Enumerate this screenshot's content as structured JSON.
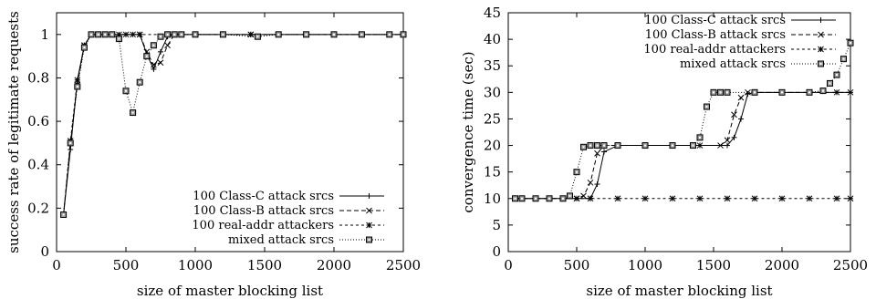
{
  "chart_data": [
    {
      "type": "line",
      "xlabel": "size of master blocking list",
      "ylabel": "success rate of legitimate requests",
      "xlim": [
        0,
        2500
      ],
      "ylim": [
        0,
        1.1
      ],
      "xticks": [
        "0",
        "500",
        "1000",
        "1500",
        "2000",
        "2500"
      ],
      "yticks": [
        "0",
        "0.2",
        "0.4",
        "0.6",
        "0.8",
        "1"
      ],
      "grid": false,
      "legend_position": "bottom-right",
      "series": [
        {
          "name": "100 Class-C attack srcs",
          "style": "solid",
          "marker": "plus",
          "x": [
            50,
            100,
            150,
            200,
            250,
            300,
            350,
            400,
            450,
            500,
            550,
            600,
            650,
            700,
            750,
            800,
            850,
            900,
            1000,
            1200,
            1400,
            1600,
            1800,
            2000,
            2200,
            2400,
            2500
          ],
          "y": [
            0.17,
            0.47,
            0.79,
            0.95,
            1.0,
            1.0,
            1.0,
            1.0,
            1.0,
            1.0,
            1.0,
            1.0,
            0.91,
            0.84,
            0.92,
            0.99,
            1.0,
            1.0,
            1.0,
            1.0,
            1.0,
            1.0,
            1.0,
            1.0,
            1.0,
            1.0,
            1.0
          ]
        },
        {
          "name": "100 Class-B attack srcs",
          "style": "dashed",
          "marker": "x",
          "x": [
            50,
            100,
            150,
            200,
            250,
            300,
            350,
            400,
            450,
            500,
            550,
            600,
            650,
            700,
            750,
            800,
            850,
            900,
            1000,
            1200,
            1400,
            1600,
            1800,
            2000,
            2200,
            2400,
            2500
          ],
          "y": [
            0.17,
            0.5,
            0.77,
            0.95,
            1.0,
            1.0,
            1.0,
            1.0,
            1.0,
            1.0,
            1.0,
            1.0,
            0.92,
            0.86,
            0.87,
            0.95,
            1.0,
            1.0,
            1.0,
            1.0,
            1.0,
            1.0,
            1.0,
            1.0,
            1.0,
            1.0,
            1.0
          ]
        },
        {
          "name": "100 real-addr attackers",
          "style": "dotted",
          "marker": "star",
          "x": [
            50,
            100,
            150,
            200,
            250,
            300,
            400,
            600,
            800,
            1000,
            1200,
            1400,
            1600,
            1800,
            2000,
            2200,
            2400,
            2500
          ],
          "y": [
            0.17,
            0.51,
            0.79,
            0.95,
            1.0,
            1.0,
            1.0,
            1.0,
            1.0,
            1.0,
            1.0,
            1.0,
            1.0,
            1.0,
            1.0,
            1.0,
            1.0,
            1.0
          ]
        },
        {
          "name": "mixed attack srcs",
          "style": "fine-dotted",
          "marker": "box",
          "x": [
            50,
            100,
            150,
            200,
            250,
            300,
            350,
            400,
            450,
            500,
            550,
            600,
            650,
            700,
            750,
            800,
            850,
            900,
            1000,
            1200,
            1450,
            1600,
            1800,
            2000,
            2200,
            2400,
            2500
          ],
          "y": [
            0.17,
            0.5,
            0.76,
            0.94,
            1.0,
            1.0,
            1.0,
            1.0,
            0.98,
            0.74,
            0.64,
            0.78,
            0.9,
            0.95,
            0.99,
            1.0,
            1.0,
            1.0,
            1.0,
            1.0,
            0.99,
            1.0,
            1.0,
            1.0,
            1.0,
            1.0,
            1.0
          ]
        }
      ]
    },
    {
      "type": "line",
      "xlabel": "size of master blocking list",
      "ylabel": "convergence time (sec)",
      "xlim": [
        0,
        2500
      ],
      "ylim": [
        0,
        45
      ],
      "xticks": [
        "0",
        "500",
        "1000",
        "1500",
        "2000",
        "2500"
      ],
      "yticks": [
        "0",
        "5",
        "10",
        "15",
        "20",
        "25",
        "30",
        "35",
        "40",
        "45"
      ],
      "grid": false,
      "legend_position": "top-right",
      "series": [
        {
          "name": "100 Class-C attack srcs",
          "style": "solid",
          "marker": "plus",
          "x": [
            50,
            100,
            200,
            300,
            400,
            500,
            600,
            650,
            700,
            800,
            1000,
            1200,
            1400,
            1600,
            1650,
            1700,
            1750,
            1800,
            2000,
            2200,
            2400,
            2500
          ],
          "y": [
            10,
            10,
            10,
            10,
            10,
            10,
            10,
            12.7,
            18.8,
            20,
            20,
            20,
            20,
            20,
            21.5,
            25,
            29.7,
            30,
            30,
            30,
            30,
            30
          ]
        },
        {
          "name": "100 Class-B attack srcs",
          "style": "dashed",
          "marker": "x",
          "x": [
            50,
            100,
            200,
            300,
            400,
            500,
            550,
            600,
            650,
            700,
            800,
            1000,
            1200,
            1400,
            1550,
            1600,
            1650,
            1700,
            1750,
            2000,
            2200,
            2400,
            2500
          ],
          "y": [
            10,
            10,
            10,
            10,
            10,
            10,
            10.5,
            13,
            18.5,
            20,
            20,
            20,
            20,
            20,
            20,
            21,
            25.8,
            29,
            30,
            30,
            30,
            30,
            30
          ]
        },
        {
          "name": "100 real-addr attackers",
          "style": "dotted",
          "marker": "star",
          "x": [
            50,
            100,
            200,
            300,
            400,
            500,
            600,
            800,
            1000,
            1200,
            1400,
            1600,
            1800,
            2000,
            2200,
            2400,
            2500
          ],
          "y": [
            10,
            10,
            10,
            10,
            10,
            10,
            10,
            10,
            10,
            10,
            10,
            10,
            10,
            10,
            10,
            10,
            10
          ]
        },
        {
          "name": "mixed attack srcs",
          "style": "fine-dotted",
          "marker": "box",
          "x": [
            50,
            100,
            200,
            300,
            400,
            450,
            500,
            550,
            600,
            650,
            700,
            800,
            1000,
            1200,
            1350,
            1400,
            1450,
            1500,
            1550,
            1600,
            1800,
            2000,
            2200,
            2300,
            2350,
            2400,
            2450,
            2500
          ],
          "y": [
            10,
            10,
            10,
            10,
            10,
            10.5,
            15,
            19.7,
            20,
            20,
            20,
            20,
            20,
            20,
            20,
            21.5,
            27.3,
            30,
            30,
            30,
            30,
            30,
            30,
            30.3,
            31.7,
            33.3,
            36.3,
            39.3
          ]
        }
      ]
    }
  ]
}
